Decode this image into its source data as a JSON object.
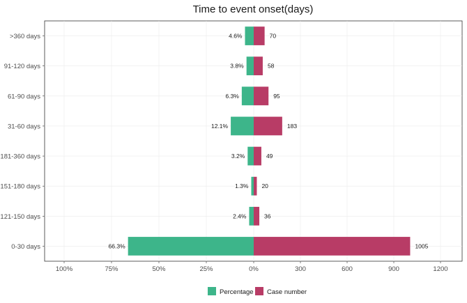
{
  "chart_data": {
    "type": "bar",
    "orientation": "horizontal-diverging",
    "title": "Time to event onset(days)",
    "xlabel": "",
    "ylabel": "",
    "categories": [
      ">360 days",
      "91-120 days",
      "61-90 days",
      "31-60 days",
      "181-360 days",
      "151-180 days",
      "121-150 days",
      "0-30 days"
    ],
    "series": [
      {
        "name": "Percentage",
        "color": "#3db58a",
        "values": [
          4.6,
          3.8,
          6.3,
          12.1,
          3.2,
          1.3,
          2.4,
          66.3
        ],
        "labels": [
          "4.6%",
          "3.8%",
          "6.3%",
          "12.1%",
          "3.2%",
          "1.3%",
          "2.4%",
          "66.3%"
        ]
      },
      {
        "name": "Case number",
        "color": "#b83c66",
        "values": [
          70,
          58,
          95,
          183,
          49,
          20,
          36,
          1005
        ],
        "labels": [
          "70",
          "58",
          "95",
          "183",
          "49",
          "20",
          "36",
          "1005"
        ]
      }
    ],
    "left_axis": {
      "ticks": [
        100,
        75,
        50,
        25,
        0
      ],
      "tick_labels": [
        "100%",
        "75%",
        "50%",
        "25%",
        "0%"
      ],
      "range": [
        0,
        100
      ]
    },
    "right_axis": {
      "ticks": [
        300,
        600,
        900,
        1200
      ],
      "tick_labels": [
        "300",
        "600",
        "900",
        "1200"
      ],
      "range": [
        0,
        1200
      ]
    },
    "grid": true,
    "legend_position": "bottom"
  }
}
